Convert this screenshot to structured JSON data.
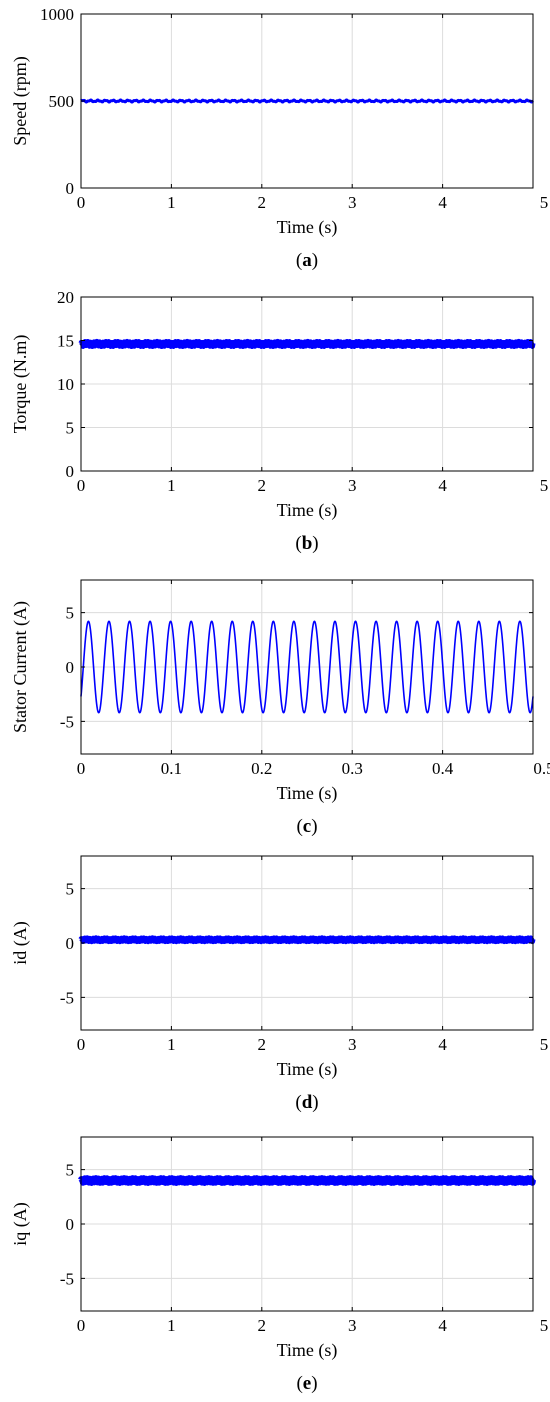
{
  "chart_data": [
    {
      "type": "line",
      "xlabel": "Time (s)",
      "ylabel": "Speed (rpm)",
      "xlim": [
        0,
        5
      ],
      "ylim": [
        0,
        1000
      ],
      "xticks": [
        "0",
        "1",
        "2",
        "3",
        "4",
        "5"
      ],
      "yticks": [
        "0",
        "500",
        "1000"
      ],
      "grid": true,
      "caption_open": "(",
      "caption_letter": "a",
      "caption_close": ")",
      "series": [
        {
          "color": "#0000ff",
          "signal": "ripple",
          "level": 500,
          "amplitude": 4,
          "cycles": 60,
          "thickness": 3
        }
      ]
    },
    {
      "type": "line",
      "xlabel": "Time (s)",
      "ylabel": "Torque (N.m)",
      "xlim": [
        0,
        5
      ],
      "ylim": [
        0,
        20
      ],
      "xticks": [
        "0",
        "1",
        "2",
        "3",
        "4",
        "5"
      ],
      "yticks": [
        "0",
        "5",
        "10",
        "15",
        "20"
      ],
      "grid": true,
      "caption_open": "(",
      "caption_letter": "b",
      "caption_close": ")",
      "series": [
        {
          "color": "#0000ff",
          "signal": "ripple",
          "level": 14.6,
          "amplitude": 0.2,
          "cycles": 150,
          "thickness": 5
        }
      ]
    },
    {
      "type": "line",
      "xlabel": "Time (s)",
      "ylabel": "Stator Current (A)",
      "xlim": [
        0,
        0.5
      ],
      "ylim": [
        -8,
        8
      ],
      "xticks": [
        "0",
        "0.1",
        "0.2",
        "0.3",
        "0.4",
        "0.5"
      ],
      "yticks": [
        "-5",
        "0",
        "5"
      ],
      "grid": true,
      "caption_open": "(",
      "caption_letter": "c",
      "caption_close": ")",
      "series": [
        {
          "color": "#0000ff",
          "signal": "sine",
          "level": 0,
          "amplitude": 4.2,
          "frequency": 44,
          "phase": -0.7,
          "thickness": 1.6
        }
      ]
    },
    {
      "type": "line",
      "xlabel": "Time (s)",
      "ylabel": "id (A)",
      "xlim": [
        0,
        5
      ],
      "ylim": [
        -8,
        8
      ],
      "xticks": [
        "0",
        "1",
        "2",
        "3",
        "4",
        "5"
      ],
      "yticks": [
        "-5",
        "0",
        "5"
      ],
      "grid": true,
      "caption_open": "(",
      "caption_letter": "d",
      "caption_close": ")",
      "series": [
        {
          "color": "#0000ff",
          "signal": "ripple",
          "level": 0.3,
          "amplitude": 0.12,
          "cycles": 160,
          "thickness": 5
        }
      ]
    },
    {
      "type": "line",
      "xlabel": "Time (s)",
      "ylabel": "iq (A)",
      "xlim": [
        0,
        5
      ],
      "ylim": [
        -8,
        8
      ],
      "xticks": [
        "0",
        "1",
        "2",
        "3",
        "4",
        "5"
      ],
      "yticks": [
        "-5",
        "0",
        "5"
      ],
      "grid": true,
      "caption_open": "(",
      "caption_letter": "e",
      "caption_close": ")",
      "series": [
        {
          "color": "#0000ff",
          "signal": "ripple",
          "level": 4.0,
          "amplitude": 0.15,
          "cycles": 160,
          "thickness": 6
        }
      ]
    }
  ]
}
